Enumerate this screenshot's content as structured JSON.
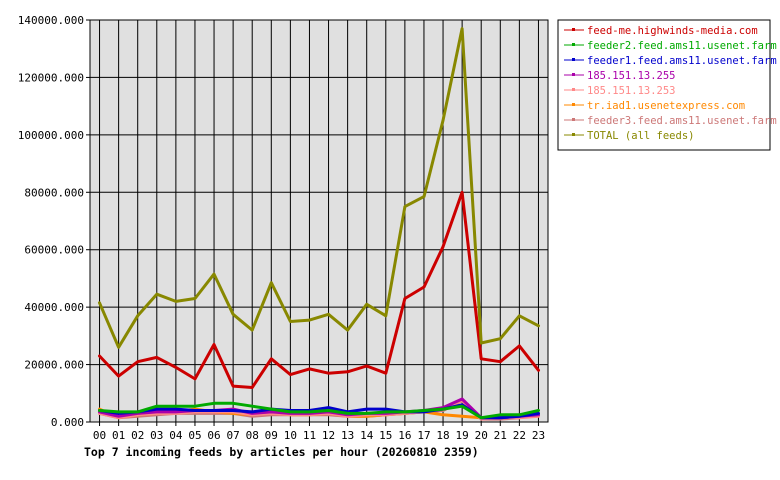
{
  "chart_data": {
    "type": "line",
    "title": "Top 7 incoming feeds by articles per hour (20260810 2359)",
    "xlabel": "",
    "ylabel": "",
    "ylim": [
      0,
      140000
    ],
    "yticks": [
      0,
      20000,
      40000,
      60000,
      80000,
      100000,
      120000,
      140000
    ],
    "ytick_labels": [
      "0.000",
      "20000.000",
      "40000.000",
      "60000.000",
      "80000.000",
      "100000.000",
      "120000.000",
      "140000.000"
    ],
    "grid": true,
    "legend_position": "right",
    "categories": [
      "00",
      "01",
      "02",
      "03",
      "04",
      "05",
      "06",
      "07",
      "08",
      "09",
      "10",
      "11",
      "12",
      "13",
      "14",
      "15",
      "16",
      "17",
      "18",
      "19",
      "20",
      "21",
      "22",
      "23"
    ],
    "series": [
      {
        "name": "feed-me.highwinds-media.com",
        "color": "#cc0000",
        "values": [
          23000,
          16000,
          21000,
          22500,
          19000,
          15000,
          27000,
          12500,
          12000,
          22000,
          16500,
          18500,
          17000,
          17500,
          19500,
          17000,
          43000,
          47000,
          61000,
          80000,
          22000,
          21000,
          26500,
          18000
        ]
      },
      {
        "name": "feeder2.feed.ams11.usenet.farm",
        "color": "#00aa00",
        "values": [
          4000,
          3500,
          3500,
          5500,
          5500,
          5500,
          6500,
          6500,
          5500,
          4500,
          3500,
          3500,
          4000,
          3000,
          3000,
          3500,
          3500,
          4000,
          4500,
          5500,
          1500,
          2500,
          2500,
          4000
        ]
      },
      {
        "name": "feeder1.feed.ams11.usenet.farm",
        "color": "#0000cc",
        "values": [
          4000,
          3000,
          3500,
          4500,
          4500,
          4000,
          4000,
          4000,
          3500,
          4500,
          4000,
          4000,
          5000,
          3500,
          4500,
          4500,
          3500,
          3500,
          4500,
          6000,
          1500,
          1500,
          2000,
          3000
        ]
      },
      {
        "name": "185.151.13.255",
        "color": "#aa00aa",
        "values": [
          3500,
          2000,
          3000,
          3500,
          3500,
          4000,
          4000,
          4500,
          3000,
          3500,
          3000,
          3000,
          3500,
          2500,
          3000,
          3000,
          3500,
          4000,
          5000,
          8000,
          1500,
          1500,
          2000,
          2500
        ]
      },
      {
        "name": "185.151.13.253",
        "color": "#ff8888",
        "values": [
          3000,
          1500,
          2500,
          3000,
          3000,
          3500,
          3500,
          3500,
          2500,
          3000,
          2500,
          2500,
          3000,
          2000,
          2500,
          2500,
          3000,
          3500,
          4500,
          7500,
          1000,
          1500,
          1500,
          2000
        ]
      },
      {
        "name": "tr.iad1.usenetexpress.com",
        "color": "#ff8800",
        "values": [
          4500,
          1500,
          2500,
          3000,
          3500,
          4500,
          3500,
          3000,
          2500,
          4500,
          2500,
          2500,
          3000,
          2000,
          2000,
          2500,
          3000,
          3500,
          2500,
          2000,
          1500,
          1500,
          2000,
          3000
        ]
      },
      {
        "name": "feeder3.feed.ams11.usenet.farm",
        "color": "#cc7777",
        "values": [
          3000,
          1500,
          2000,
          2500,
          3000,
          3000,
          3000,
          3000,
          2000,
          2500,
          2500,
          2500,
          2500,
          2000,
          2000,
          2500,
          3000,
          3500,
          4000,
          7500,
          1000,
          1000,
          1500,
          2500
        ]
      },
      {
        "name": "TOTAL (all feeds)",
        "color": "#888800",
        "values": [
          41500,
          26000,
          37000,
          44500,
          42000,
          43000,
          51500,
          37500,
          32000,
          48500,
          35000,
          35500,
          37500,
          32000,
          41000,
          37000,
          75000,
          78500,
          105000,
          137000,
          27500,
          29000,
          37000,
          33500
        ]
      }
    ]
  }
}
